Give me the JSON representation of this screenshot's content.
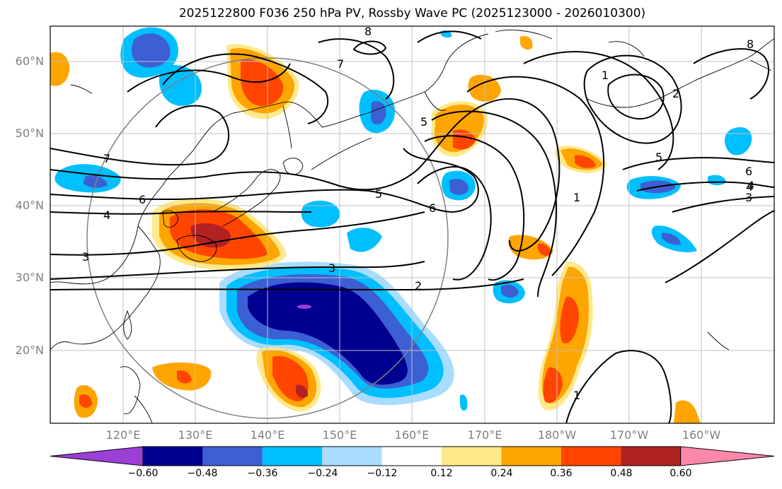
{
  "title": "2025122800 F036 250 hPa PV, Rossby Wave PC (2025123000 - 2026010300)",
  "lat_labels": [
    "60°N",
    "50°N",
    "40°N",
    "30°N",
    "20°N"
  ],
  "lon_labels": [
    "120°E",
    "130°E",
    "140°E",
    "150°E",
    "160°E",
    "170°E",
    "180°W",
    "170°W",
    "160°W"
  ],
  "colorbar": {
    "ticks": [
      "−0.60",
      "−0.48",
      "−0.36",
      "−0.24",
      "−0.12",
      "0.12",
      "0.24",
      "0.36",
      "0.48",
      "0.60"
    ],
    "colors": [
      "#9b3fd6",
      "#000090",
      "#3c5fd4",
      "#00bfff",
      "#a8ddff",
      "#ffffff",
      "#ffe98a",
      "#ffa500",
      "#ff4500",
      "#b22222",
      "#ff88aa"
    ]
  },
  "contour_labels": [
    "1",
    "2",
    "3",
    "4",
    "5",
    "6",
    "7",
    "8",
    "1",
    "5",
    "6",
    "4",
    "3",
    "1",
    "2",
    "3",
    "4",
    "5",
    "6",
    "7",
    "8"
  ],
  "contour_levels": [
    1,
    2,
    3,
    4,
    5,
    6,
    7,
    8
  ]
}
